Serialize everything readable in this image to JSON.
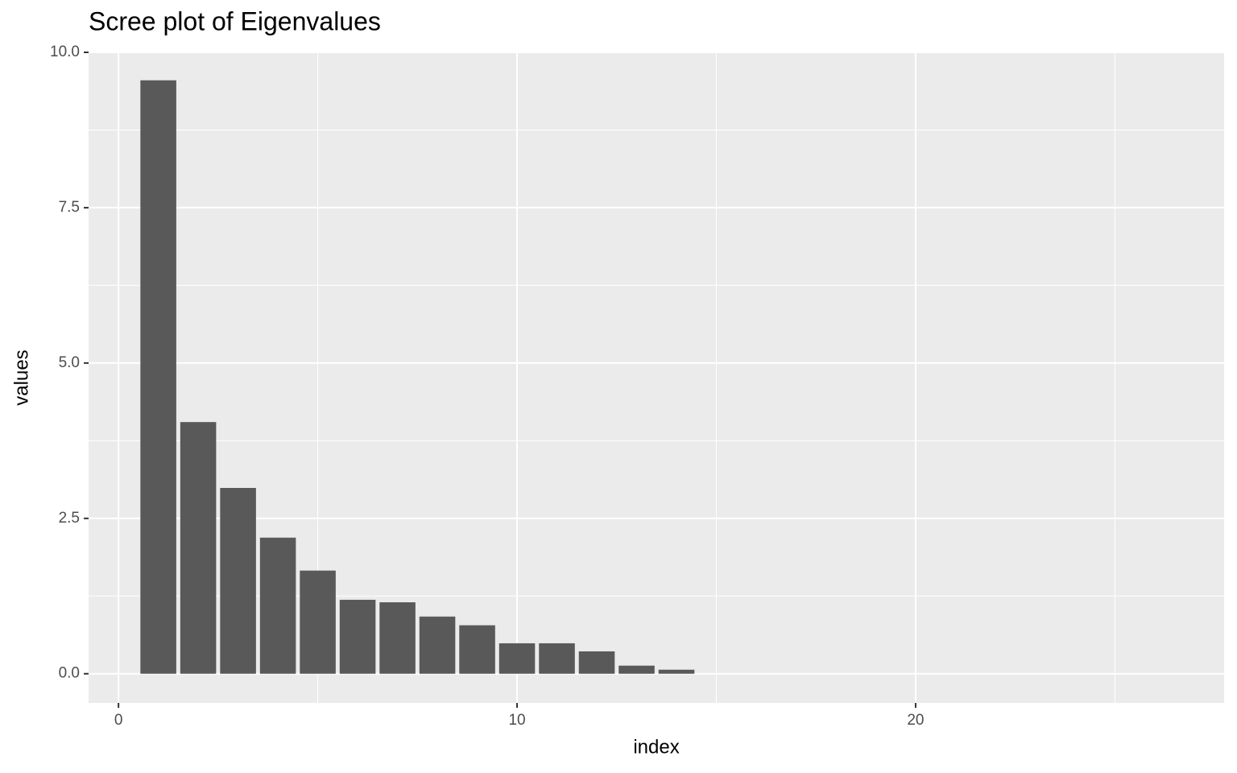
{
  "chart_data": {
    "type": "bar",
    "title": "Scree plot of Eigenvalues",
    "x_label": "index",
    "y_label": "values",
    "x": [
      1,
      2,
      3,
      4,
      5,
      6,
      7,
      8,
      9,
      10,
      11,
      12,
      13,
      14
    ],
    "values": [
      9.55,
      4.05,
      2.99,
      2.19,
      1.66,
      1.19,
      1.15,
      0.92,
      0.78,
      0.49,
      0.49,
      0.36,
      0.13,
      0.065
    ],
    "color": "#595959",
    "xlim": [
      -0.75,
      27.74
    ],
    "ylim": [
      -0.47,
      10.0
    ],
    "xticks": [
      0,
      10,
      20
    ],
    "yticks": [
      {
        "value": 0,
        "label": "0.0"
      },
      {
        "value": 2.5,
        "label": "2.5"
      },
      {
        "value": 5,
        "label": "5.0"
      },
      {
        "value": 7.5,
        "label": "7.5"
      },
      {
        "value": 10,
        "label": "10.0"
      }
    ],
    "grid": true,
    "minor_grid": true
  }
}
